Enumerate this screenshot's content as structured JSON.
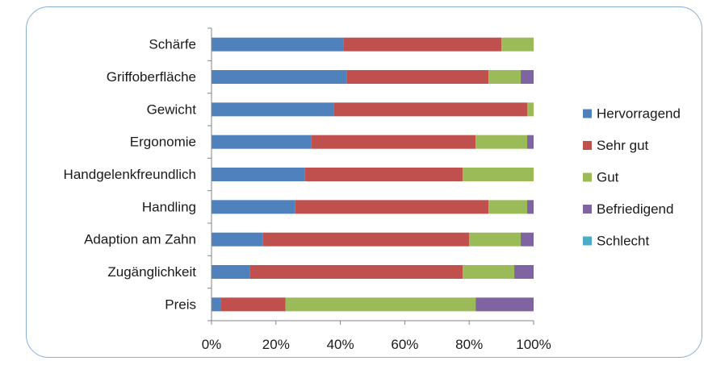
{
  "chart_data": {
    "type": "bar",
    "orientation": "horizontal",
    "stacked": "percent",
    "categories": [
      "Schärfe",
      "Griffoberfläche",
      "Gewicht",
      "Ergonomie",
      "Handgelenkfreundlich",
      "Handling",
      "Adaption am Zahn",
      "Zugänglichkeit",
      "Preis"
    ],
    "series": [
      {
        "name": "Hervorragend",
        "color": "#4f81bd",
        "values": [
          41,
          42,
          38,
          31,
          29,
          26,
          16,
          12,
          3
        ]
      },
      {
        "name": "Sehr gut",
        "color": "#c0504d",
        "values": [
          49,
          44,
          60,
          51,
          49,
          60,
          64,
          66,
          20
        ]
      },
      {
        "name": "Gut",
        "color": "#9bbb59",
        "values": [
          10,
          10,
          2,
          16,
          22,
          12,
          16,
          16,
          59
        ]
      },
      {
        "name": "Befriedigend",
        "color": "#8064a2",
        "values": [
          0,
          4,
          0,
          2,
          0,
          2,
          4,
          6,
          18
        ]
      },
      {
        "name": "Schlecht",
        "color": "#4bacc6",
        "values": [
          0,
          0,
          0,
          0,
          0,
          0,
          0,
          0,
          0
        ]
      }
    ],
    "xlim": [
      0,
      100
    ],
    "xticks": [
      "0%",
      "20%",
      "40%",
      "60%",
      "80%",
      "100%"
    ],
    "legend_position": "right",
    "grid": false
  }
}
